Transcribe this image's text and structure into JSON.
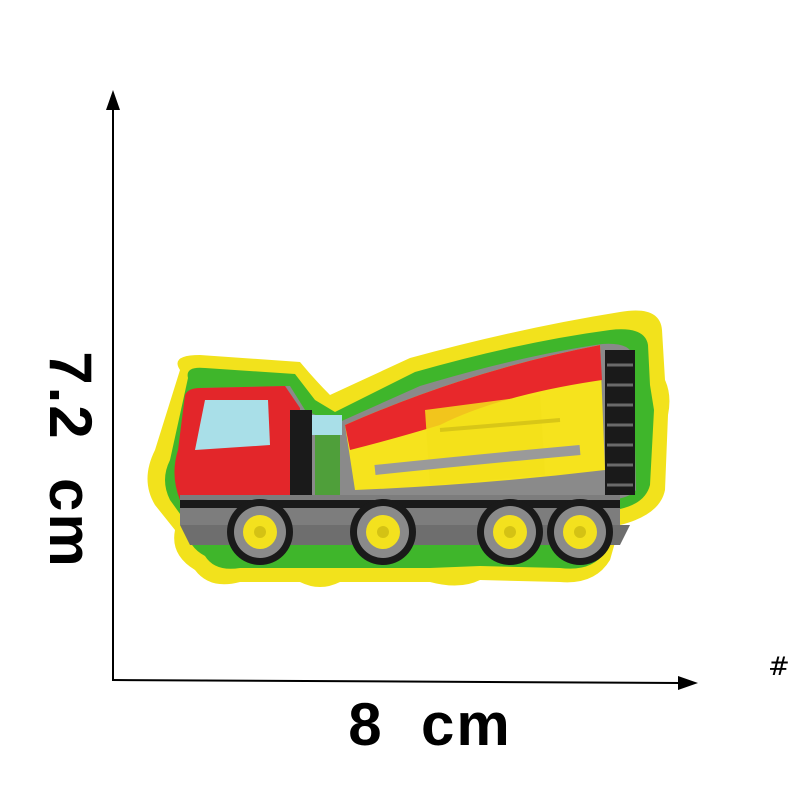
{
  "dimensions": {
    "width_label": "8  cm",
    "height_label": "7.2  cm"
  },
  "corner_mark": "#",
  "patch": {
    "subject": "concrete-mixer-truck-patch",
    "colors": {
      "border_outer": "#f2e21c",
      "border_green": "#3fb62b",
      "cab_red": "#e3262a",
      "drum_red": "#e8282b",
      "drum_yellow": "#f6e31d",
      "chassis_gray": "#8a8a8a",
      "wheel_yellow": "#f3e11e",
      "window_blue": "#a9dfe8",
      "stripe_black": "#1a1a1a"
    }
  }
}
